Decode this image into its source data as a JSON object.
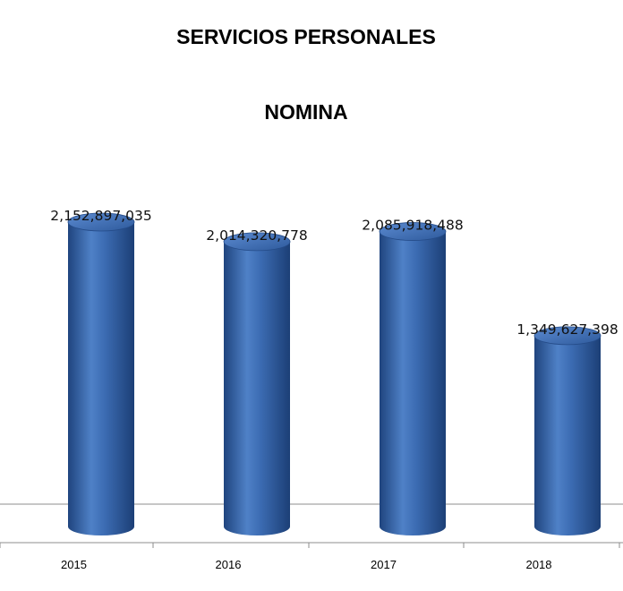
{
  "chart_data": {
    "type": "bar",
    "title": "SERVICIOS PERSONALES",
    "subtitle": "NOMINA",
    "categories": [
      "2015",
      "2016",
      "2017",
      "2018"
    ],
    "values": [
      2152897035,
      2014320778,
      2085918488,
      1349627398
    ],
    "data_labels": [
      "2,152,897,035",
      "2,014,320,778",
      "2,085,918,488",
      "1,349,627,398"
    ],
    "ylim": [
      0,
      2152897035
    ],
    "bar_color": "#3F6FB5",
    "grid": false,
    "legend": "none"
  }
}
